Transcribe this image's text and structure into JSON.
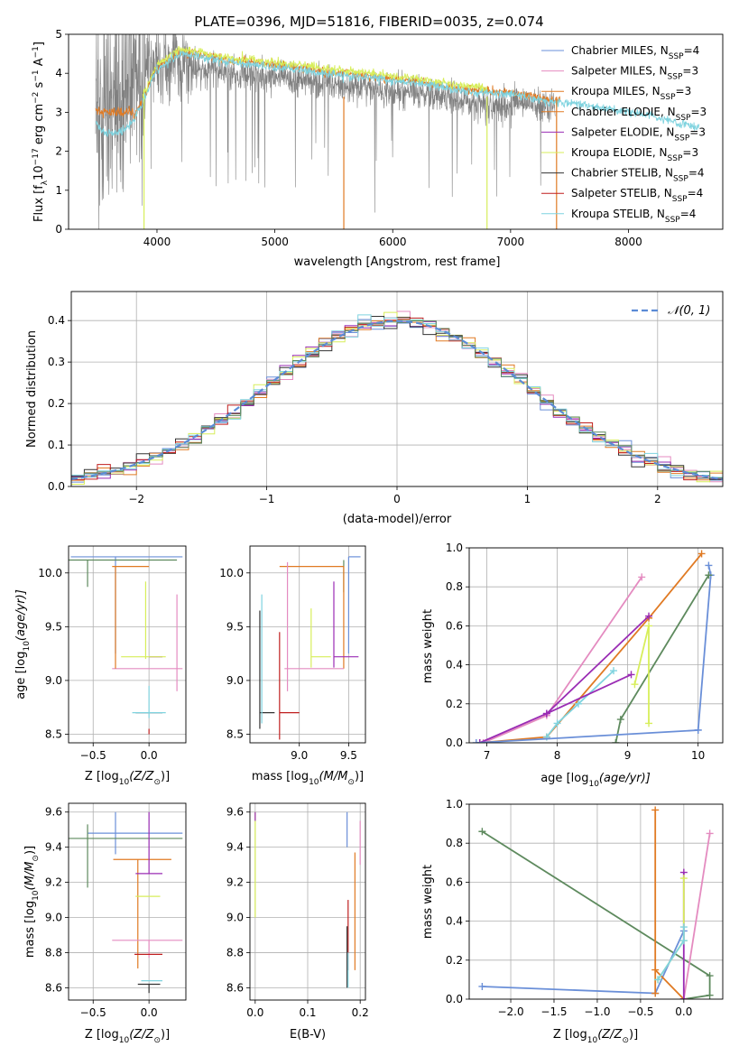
{
  "title": "PLATE=0396, MJD=51816, FIBERID=0035, z=0.074",
  "colors": {
    "chabrier_miles": "#6a8fd8",
    "salpeter_miles": "#e48bc0",
    "kroupa_miles": "#e07a23",
    "chabrier_elodie": "#e07a23",
    "salpeter_elodie": "#9a2cb4",
    "kroupa_elodie": "#d7ee5a",
    "chabrier_stelib": "#333333",
    "salpeter_stelib": "#c01f1f",
    "kroupa_stelib": "#7fd3df",
    "green": "#5e8a5e",
    "data": "#808080",
    "gaussian": "#5b8bd6",
    "grid": "#b0b0b0"
  },
  "chart_data": [
    {
      "id": "spectrum",
      "type": "line",
      "title": "PLATE=0396, MJD=51816, FIBERID=0035, z=0.074",
      "xlabel": "wavelength [Angstrom, rest frame]",
      "ylabel_main": "Flux [f",
      "ylabel_sub": "λ",
      "ylabel_rest": "10",
      "ylabel_exp1": "−17",
      "ylabel_mid": " erg cm",
      "ylabel_exp2": "−2",
      "ylabel_s": " s",
      "ylabel_exp3": "−1",
      "ylabel_end": " A",
      "ylabel_exp4": "−1",
      "ylabel_close": "]",
      "xlim": [
        3250,
        8800
      ],
      "ylim": [
        0,
        5
      ],
      "xticks": [
        4000,
        5000,
        6000,
        7000,
        8000
      ],
      "yticks": [
        0,
        1,
        2,
        3,
        4,
        5
      ],
      "legend_position": "top-right",
      "legend": [
        {
          "label": "Chabrier MILES, N",
          "sub": "SSP",
          "suffix": "=4",
          "color": "#6a8fd8"
        },
        {
          "label": "Salpeter MILES, N",
          "sub": "SSP",
          "suffix": "=3",
          "color": "#e48bc0"
        },
        {
          "label": "Kroupa MILES, N",
          "sub": "SSP",
          "suffix": "=3",
          "color": "#e07a23"
        },
        {
          "label": "Chabrier ELODIE, N",
          "sub": "SSP",
          "suffix": "=3",
          "color": "#e07a23"
        },
        {
          "label": "Salpeter ELODIE, N",
          "sub": "SSP",
          "suffix": "=3",
          "color": "#9a2cb4"
        },
        {
          "label": "Kroupa ELODIE, N",
          "sub": "SSP",
          "suffix": "=3",
          "color": "#d7ee5a"
        },
        {
          "label": "Chabrier STELIB, N",
          "sub": "SSP",
          "suffix": "=4",
          "color": "#333333"
        },
        {
          "label": "Salpeter STELIB, N",
          "sub": "SSP",
          "suffix": "=4",
          "color": "#c01f1f"
        },
        {
          "label": "Kroupa STELIB, N",
          "sub": "SSP",
          "suffix": "=4",
          "color": "#7fd3df"
        }
      ],
      "data_trend": {
        "x": [
          3500,
          3600,
          3700,
          3800,
          3900,
          4000,
          4100,
          4200,
          4300,
          4400,
          4500,
          4600,
          4800,
          5000,
          5200,
          5400,
          5600,
          5800,
          6000,
          6200,
          6400,
          6600,
          6800,
          7000,
          7200,
          7400
        ],
        "y": [
          2.9,
          3.1,
          3.8,
          4.0,
          4.1,
          4.2,
          4.3,
          4.3,
          4.2,
          4.1,
          4.1,
          4.0,
          3.95,
          3.9,
          3.85,
          3.8,
          3.7,
          3.6,
          3.55,
          3.5,
          3.4,
          3.3,
          3.2,
          3.2,
          3.2,
          3.2
        ]
      },
      "model_trend": {
        "x": [
          3500,
          3550,
          3600,
          3650,
          3700,
          3750,
          3800,
          3850,
          3900,
          3950,
          4000,
          4100,
          4200,
          4300,
          4400,
          4500,
          4600,
          4700,
          4800,
          4900,
          5000,
          5200,
          5400,
          5600,
          5800,
          6000,
          6200,
          6400,
          6600,
          6800,
          7000,
          7100,
          7200,
          7300,
          7400,
          7600,
          7800,
          8000,
          8200,
          8400,
          8600
        ],
        "y": [
          2.7,
          2.45,
          2.5,
          2.45,
          2.55,
          2.6,
          2.8,
          3.1,
          3.4,
          3.8,
          4.1,
          4.3,
          4.5,
          4.45,
          4.4,
          4.35,
          4.3,
          4.25,
          4.25,
          4.2,
          4.15,
          4.1,
          4.0,
          3.95,
          3.9,
          3.8,
          3.75,
          3.65,
          3.55,
          3.5,
          3.45,
          3.4,
          3.35,
          3.3,
          3.25,
          3.2,
          3.1,
          3.0,
          2.9,
          2.75,
          2.6
        ]
      }
    },
    {
      "id": "residuals",
      "type": "line",
      "xlabel": "(data-model)/error",
      "ylabel": "Normed distribution",
      "xlim": [
        -2.5,
        2.5
      ],
      "ylim": [
        0,
        0.47
      ],
      "xticks": [
        -2,
        -1,
        0,
        1,
        2
      ],
      "xtick_labels": [
        "−2",
        "−1",
        "0",
        "1",
        "2"
      ],
      "yticks": [
        0.0,
        0.1,
        0.2,
        0.3,
        0.4
      ],
      "ytick_labels": [
        "0.0",
        "0.1",
        "0.2",
        "0.3",
        "0.4"
      ],
      "legend_position": "top-right",
      "legend_label": "𝒩(0, 1)",
      "gaussian": {
        "mean": 0,
        "sigma": 1
      },
      "bin_width": 0.1,
      "hist_min": -2.5
    },
    {
      "id": "age-vs-z",
      "type": "scatter",
      "xlabel": "Z [log",
      "xlabel_sub": "10",
      "xlabel_rest": "(Z/Z",
      "xlabel_sub2": "⊙",
      "xlabel_end": ")]",
      "ylabel": "age  [log",
      "ylabel_sub": "10",
      "ylabel_rest": "(age/yr)]",
      "xlim": [
        -0.72,
        0.33
      ],
      "ylim": [
        8.42,
        10.25
      ],
      "xticks": [
        -0.5,
        0.0
      ],
      "xtick_labels": [
        "−0.5",
        "0.0"
      ],
      "yticks": [
        8.5,
        9.0,
        9.5,
        10.0
      ],
      "ytick_labels": [
        "8.5",
        "9.0",
        "9.5",
        "10.0"
      ]
    },
    {
      "id": "age-vs-mass",
      "type": "scatter",
      "xlabel": "mass [log",
      "xlabel_sub": "10",
      "xlabel_rest": "(M/M",
      "xlabel_sub2": "⊙",
      "xlabel_end": ")]",
      "xlim": [
        8.5,
        9.67
      ],
      "ylim": [
        8.42,
        10.25
      ],
      "xticks": [
        9.0,
        9.5
      ],
      "xtick_labels": [
        "9.0",
        "9.5"
      ],
      "yticks": [
        8.5,
        9.0,
        9.5,
        10.0
      ],
      "ytick_labels": [
        "8.5",
        "9.0",
        "9.5",
        "10.0"
      ]
    },
    {
      "id": "weight-vs-age",
      "type": "line",
      "xlabel": "age  [log",
      "xlabel_sub": "10",
      "xlabel_rest": "(age/yr)]",
      "ylabel": "mass weight",
      "xlim": [
        6.75,
        10.35
      ],
      "ylim": [
        0,
        1
      ],
      "xticks": [
        7,
        8,
        9,
        10
      ],
      "yticks": [
        0.0,
        0.2,
        0.4,
        0.6,
        0.8,
        1.0
      ],
      "ytick_labels": [
        "0.0",
        "0.2",
        "0.4",
        "0.6",
        "0.8",
        "1.0"
      ],
      "series": [
        {
          "color": "#6a8fd8",
          "x": [
            10.0,
            10.18,
            10.15
          ],
          "y": [
            0.065,
            0.86,
            0.91
          ]
        },
        {
          "color": "#5e8a5e",
          "x": [
            8.83,
            8.9,
            10.15
          ],
          "y": [
            0.0,
            0.12,
            0.86
          ]
        },
        {
          "color": "#e48bc0",
          "x": [
            6.95,
            7.85,
            9.2
          ],
          "y": [
            0.0,
            0.14,
            0.85
          ]
        },
        {
          "color": "#e07a23",
          "x": [
            6.9,
            7.85,
            9.3,
            10.05
          ],
          "y": [
            0.0,
            0.03,
            0.64,
            0.97
          ]
        },
        {
          "color": "#9a2cb4",
          "x": [
            6.9,
            7.85,
            9.3
          ],
          "y": [
            0.0,
            0.15,
            0.65
          ]
        },
        {
          "color": "#d7ee5a",
          "x": [
            9.3,
            9.3,
            9.1
          ],
          "y": [
            0.1,
            0.6,
            0.3
          ]
        },
        {
          "color": "#7fd3df",
          "x": [
            7.85,
            8.0,
            8.3,
            8.8
          ],
          "y": [
            0.03,
            0.1,
            0.2,
            0.37
          ]
        },
        {
          "color": "#6a8fd8",
          "x": [
            6.85,
            10.0
          ],
          "y": [
            0.0,
            0.065
          ]
        },
        {
          "color": "#9a2cb4",
          "x": [
            7.85,
            9.05
          ],
          "y": [
            0.15,
            0.35
          ]
        }
      ]
    },
    {
      "id": "mass-vs-z",
      "type": "scatter",
      "xlabel": "Z [log",
      "xlabel_sub": "10",
      "xlabel_rest": "(Z/Z",
      "xlabel_sub2": "⊙",
      "xlabel_end": ")]",
      "ylabel": "mass [log",
      "ylabel_sub": "10",
      "ylabel_rest": "(M/M",
      "ylabel_sub2": "⊙",
      "ylabel_end": ")]",
      "xlim": [
        -0.72,
        0.33
      ],
      "ylim": [
        8.53,
        9.65
      ],
      "xticks": [
        -0.5,
        0.0
      ],
      "xtick_labels": [
        "−0.5",
        "0.0"
      ],
      "yticks": [
        8.6,
        8.8,
        9.0,
        9.2,
        9.4,
        9.6
      ],
      "ytick_labels": [
        "8.6",
        "8.8",
        "9.0",
        "9.2",
        "9.4",
        "9.6"
      ]
    },
    {
      "id": "mass-vs-ebv",
      "type": "scatter",
      "xlabel": "E(B-V)",
      "xlim": [
        -0.01,
        0.21
      ],
      "ylim": [
        8.53,
        9.65
      ],
      "xticks": [
        0.0,
        0.1,
        0.2
      ],
      "xtick_labels": [
        "0.0",
        "0.1",
        "0.2"
      ],
      "yticks": [
        8.6,
        8.8,
        9.0,
        9.2,
        9.4,
        9.6
      ],
      "ytick_labels": [
        "8.6",
        "8.8",
        "9.0",
        "9.2",
        "9.4",
        "9.6"
      ]
    },
    {
      "id": "weight-vs-z",
      "type": "line",
      "xlabel": "Z [log",
      "xlabel_sub": "10",
      "xlabel_rest": "(Z/Z",
      "xlabel_sub2": "⊙",
      "xlabel_end": ")]",
      "ylabel": "mass weight",
      "xlim": [
        -2.48,
        0.45
      ],
      "ylim": [
        0,
        1
      ],
      "xticks": [
        -2.0,
        -1.5,
        -1.0,
        -0.5,
        0.0
      ],
      "xtick_labels": [
        "−2.0",
        "−1.5",
        "−1.0",
        "−0.5",
        "0.0"
      ],
      "yticks": [
        0.0,
        0.2,
        0.4,
        0.6,
        0.8,
        1.0
      ],
      "ytick_labels": [
        "0.0",
        "0.2",
        "0.4",
        "0.6",
        "0.8",
        "1.0"
      ],
      "series": [
        {
          "color": "#5e8a5e",
          "x": [
            -2.33,
            0.3,
            0.3,
            0.0
          ],
          "y": [
            0.86,
            0.12,
            0.02,
            0.0
          ]
        },
        {
          "color": "#6a8fd8",
          "x": [
            -2.33,
            -0.33,
            0.0
          ],
          "y": [
            0.065,
            0.03,
            0.35
          ]
        },
        {
          "color": "#e48bc0",
          "x": [
            0.0,
            0.3
          ],
          "y": [
            0.0,
            0.85
          ]
        },
        {
          "color": "#e07a23",
          "x": [
            -0.33,
            -0.33,
            -0.33,
            0.0
          ],
          "y": [
            0.03,
            0.97,
            0.15,
            0.0
          ]
        },
        {
          "color": "#9a2cb4",
          "x": [
            0.0,
            0.0
          ],
          "y": [
            0.0,
            0.65
          ]
        },
        {
          "color": "#d7ee5a",
          "x": [
            -0.3,
            0.0,
            0.0
          ],
          "y": [
            0.1,
            0.3,
            0.62
          ]
        },
        {
          "color": "#7fd3df",
          "x": [
            -0.3,
            0.0,
            0.0
          ],
          "y": [
            0.1,
            0.3,
            0.37
          ]
        }
      ]
    }
  ]
}
